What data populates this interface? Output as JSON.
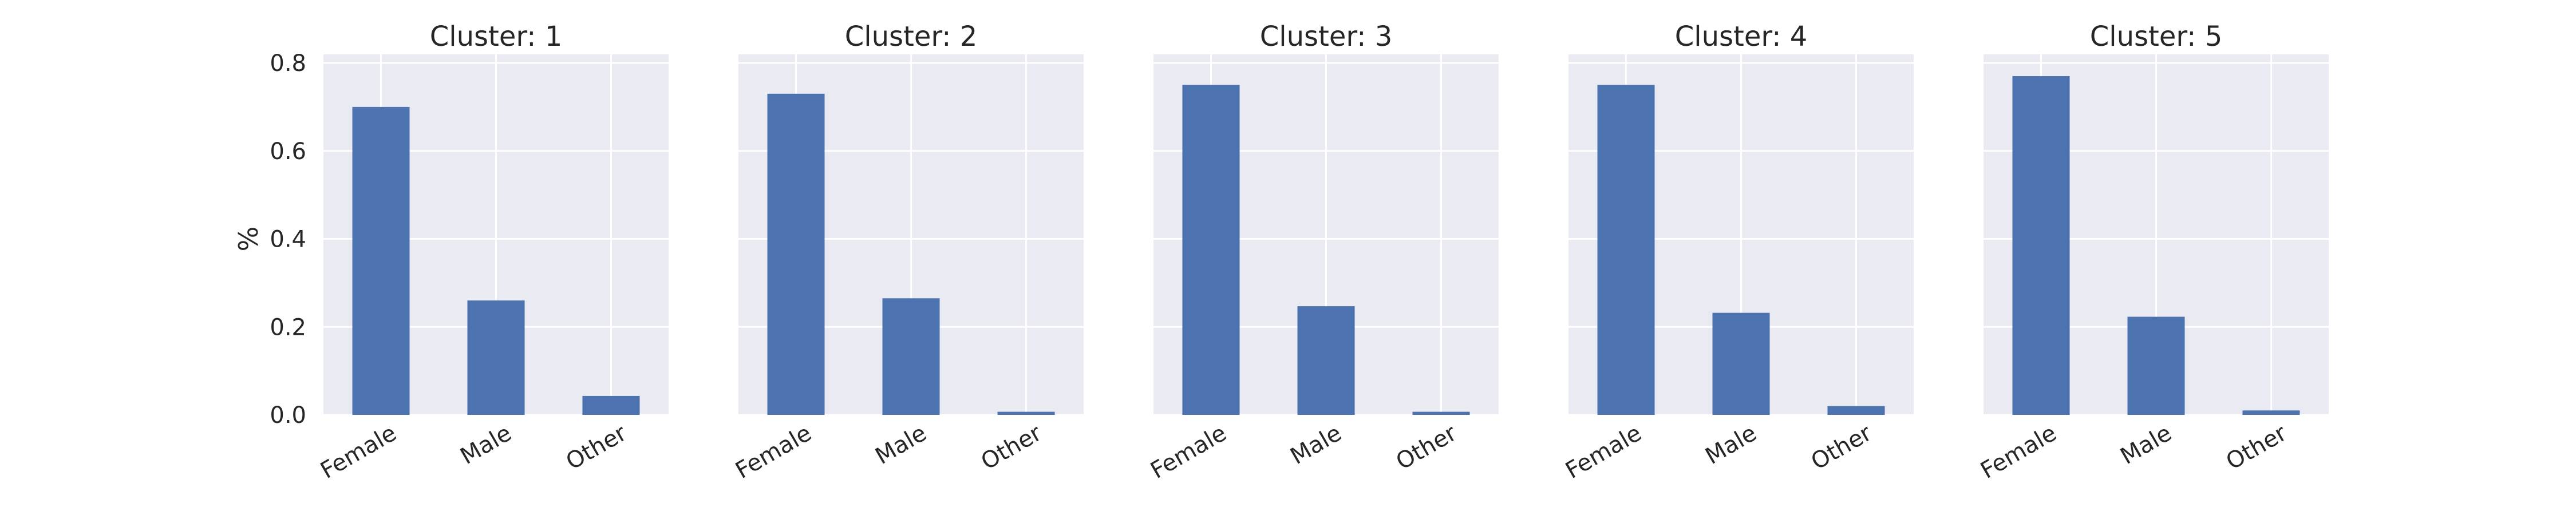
{
  "chart_data": [
    {
      "type": "bar",
      "title": "Cluster: 1",
      "categories": [
        "Female",
        "Male",
        "Other"
      ],
      "values": [
        0.7,
        0.26,
        0.043
      ],
      "ylabel": "%",
      "ylim": [
        0,
        0.8
      ],
      "yticks": [
        "0.0",
        "0.2",
        "0.4",
        "0.6",
        "0.8"
      ],
      "grid": true
    },
    {
      "type": "bar",
      "title": "Cluster: 2",
      "categories": [
        "Female",
        "Male",
        "Other"
      ],
      "values": [
        0.73,
        0.265,
        0.007
      ],
      "ylabel": "",
      "ylim": [
        0,
        0.8
      ],
      "grid": true
    },
    {
      "type": "bar",
      "title": "Cluster: 3",
      "categories": [
        "Female",
        "Male",
        "Other"
      ],
      "values": [
        0.75,
        0.247,
        0.007
      ],
      "ylabel": "",
      "ylim": [
        0,
        0.8
      ],
      "grid": true
    },
    {
      "type": "bar",
      "title": "Cluster: 4",
      "categories": [
        "Female",
        "Male",
        "Other"
      ],
      "values": [
        0.75,
        0.232,
        0.02
      ],
      "ylabel": "",
      "ylim": [
        0,
        0.8
      ],
      "grid": true
    },
    {
      "type": "bar",
      "title": "Cluster: 5",
      "categories": [
        "Female",
        "Male",
        "Other"
      ],
      "values": [
        0.77,
        0.223,
        0.01
      ],
      "ylabel": "",
      "ylim": [
        0,
        0.8
      ],
      "grid": true
    }
  ],
  "colors": {
    "bar": "#4c72b0",
    "panel_background": "#eaeaf2",
    "grid": "#ffffff",
    "text": "#262626"
  }
}
